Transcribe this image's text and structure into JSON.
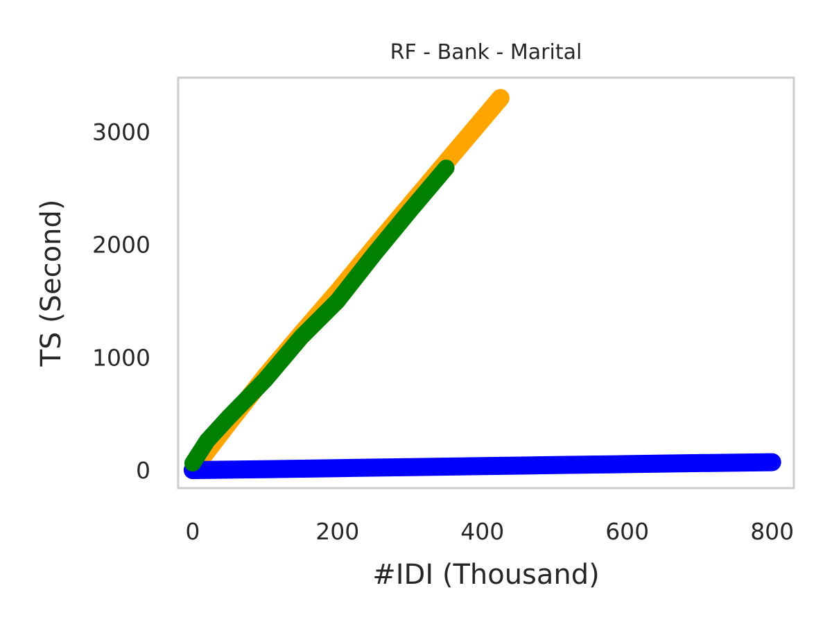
{
  "chart_data": {
    "type": "line",
    "title": "RF - Bank - Marital",
    "xlabel": "#IDI (Thousand)",
    "ylabel": "TS (Second)",
    "xlim": [
      -20,
      830
    ],
    "ylim": [
      -160,
      3480
    ],
    "xticks": [
      0,
      200,
      400,
      600,
      800
    ],
    "yticks": [
      0,
      1000,
      2000,
      3000
    ],
    "grid": false,
    "legend": "none",
    "series": [
      {
        "color": "#ffa500",
        "x": [
          0,
          50,
          100,
          150,
          200,
          250,
          300,
          350,
          400,
          425
        ],
        "y": [
          0,
          420,
          830,
          1210,
          1580,
          1970,
          2350,
          2730,
          3110,
          3300
        ]
      },
      {
        "color": "#0000ff",
        "x": [
          0,
          100,
          200,
          300,
          400,
          500,
          600,
          700,
          800
        ],
        "y": [
          0,
          8,
          17,
          26,
          35,
          44,
          53,
          62,
          70
        ]
      },
      {
        "color": "#008000",
        "x": [
          0,
          20,
          50,
          100,
          150,
          200,
          250,
          300,
          350
        ],
        "y": [
          60,
          260,
          470,
          800,
          1180,
          1500,
          1910,
          2300,
          2680
        ]
      }
    ]
  }
}
